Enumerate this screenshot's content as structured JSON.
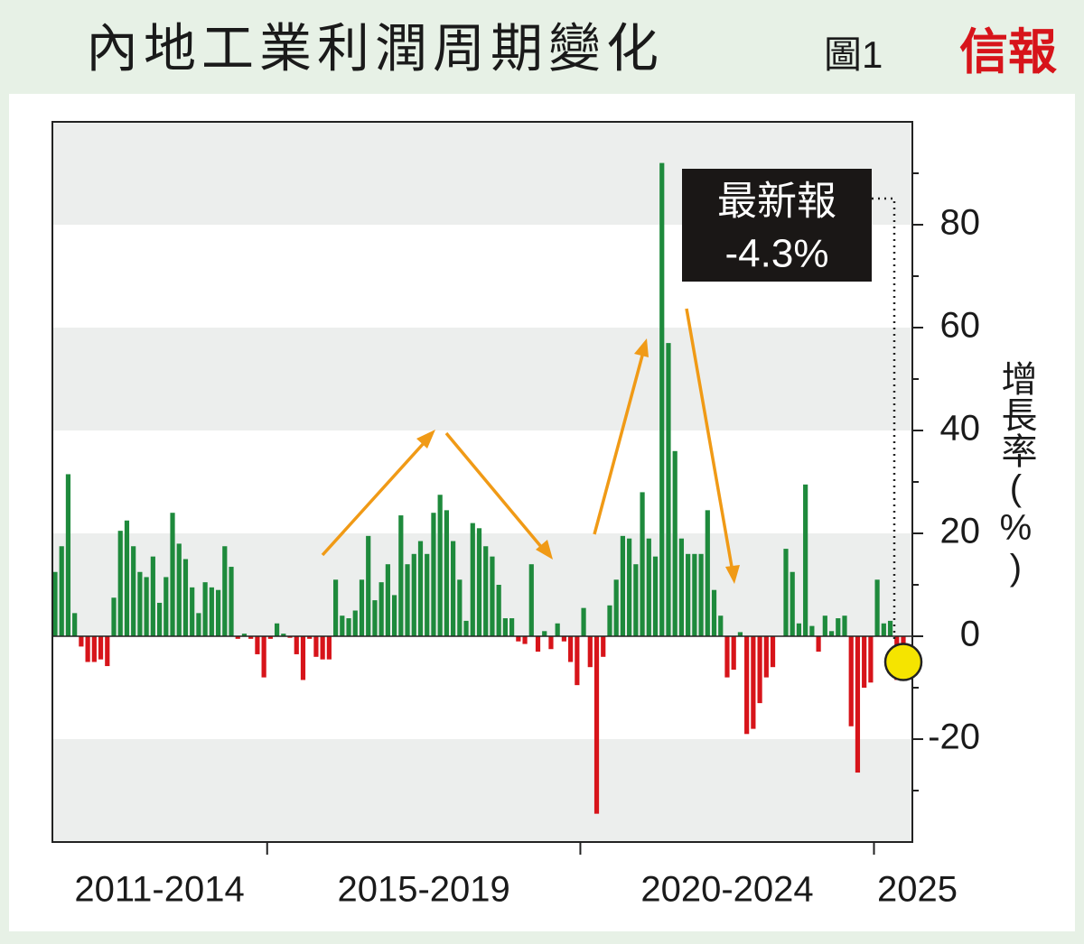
{
  "title": "內地工業利潤周期變化",
  "figure": "圖1",
  "source": "信報",
  "chart_data": {
    "type": "bar",
    "ylabel": "增長率(%)",
    "categories": [
      null,
      null,
      null,
      null,
      null,
      null,
      null,
      null,
      null,
      null,
      null,
      null,
      null,
      null,
      null,
      null,
      null,
      null,
      null,
      null,
      null,
      null,
      null,
      null,
      null,
      null,
      null,
      null,
      null,
      null,
      null,
      null,
      null,
      null,
      null,
      null,
      null,
      null,
      null,
      null,
      null,
      null,
      null,
      null,
      null,
      null,
      null,
      null,
      null,
      null,
      null,
      null,
      null,
      null,
      null,
      null,
      null,
      null,
      null,
      null,
      null,
      null,
      null,
      null,
      null,
      null,
      null,
      null,
      null,
      null,
      null,
      null,
      null,
      null,
      null,
      null,
      null,
      null,
      null,
      null,
      null,
      null,
      null,
      null,
      null,
      null,
      null,
      null,
      null,
      null,
      null,
      null,
      null,
      null,
      null,
      null,
      null,
      null,
      null,
      null,
      null,
      null,
      null,
      null,
      null,
      null,
      null,
      null,
      null,
      null,
      null,
      null,
      null,
      null,
      null,
      null,
      null,
      null,
      null,
      null,
      null,
      null,
      null,
      null,
      null,
      null,
      null,
      null,
      null,
      null,
      null
    ],
    "values": [
      12.5,
      17.5,
      31.5,
      4.5,
      -2,
      -5,
      -5,
      -4.5,
      -5.8,
      7.5,
      20.5,
      22.5,
      17.5,
      12.5,
      11.5,
      15.5,
      6.5,
      11.5,
      24,
      18,
      15,
      9.5,
      4.5,
      10.5,
      9.5,
      9,
      17.5,
      13.5,
      -0.5,
      0.5,
      -0.5,
      -3.5,
      -8,
      -0.5,
      2.5,
      0.5,
      -0.3,
      -3.5,
      -8.5,
      -0.5,
      -4,
      -4.5,
      -4.5,
      11,
      4,
      3.5,
      5,
      11,
      19.5,
      7,
      10.5,
      14,
      8,
      23.5,
      14,
      16,
      18.5,
      16,
      24,
      27.5,
      24.5,
      18.5,
      11,
      3,
      22,
      21,
      17.5,
      15.5,
      10,
      3.5,
      3.5,
      -1,
      -1.5,
      14,
      -3,
      1,
      -2.5,
      2.5,
      -1,
      -5,
      -9.5,
      5.5,
      -6,
      -34.5,
      -4,
      6,
      11,
      19.5,
      19,
      14,
      28,
      19,
      15.5,
      92,
      57,
      36,
      19,
      16,
      16,
      16,
      24.5,
      9,
      4,
      -8,
      -6.5,
      0.8,
      -19,
      -18,
      -13,
      -8,
      -6,
      0,
      17,
      12.5,
      2.5,
      29.5,
      2,
      -3,
      4,
      1,
      3.5,
      4,
      -17.5,
      -26.5,
      -10,
      -9,
      11,
      2.5,
      3,
      -8.5,
      -4.3
    ],
    "positive_color": "#1e8a3c",
    "negative_color": "#d7141a",
    "groups": [
      {
        "label": "2011-2014",
        "start": 0,
        "end": 32
      },
      {
        "label": "2015-2019",
        "start": 33,
        "end": 80
      },
      {
        "label": "2020-2024",
        "start": 81,
        "end": 125
      },
      {
        "label": "2025",
        "start": 126,
        "end": 130
      }
    ],
    "ylim": [
      -40,
      100
    ],
    "yticks": [
      -20,
      0,
      20,
      40,
      60,
      80
    ],
    "yticks_minor": [
      -30,
      -10,
      10,
      30,
      50,
      70,
      90
    ],
    "banded_grid": true,
    "annotation": {
      "title": "最新報",
      "text": "-4.3%"
    }
  }
}
